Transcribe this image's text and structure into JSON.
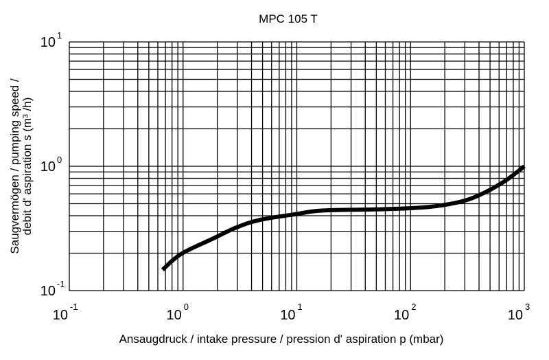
{
  "chart_data": {
    "type": "line",
    "title": "MPC 105 T",
    "xlabel": "Ansaugdruck / intake pressure / pression d' aspiration p (mbar)",
    "ylabel_line1": "Saugvermögen / pumping speed /",
    "ylabel_line2": "debit d' aspiration s (m³ /h)",
    "xscale": "log",
    "yscale": "log",
    "xlim": [
      0.1,
      1000
    ],
    "ylim": [
      0.1,
      10
    ],
    "grid": true,
    "x_ticks": [
      {
        "value": 0.1,
        "base": "10",
        "exp": "-1"
      },
      {
        "value": 1,
        "base": "10",
        "exp": "0"
      },
      {
        "value": 10,
        "base": "10",
        "exp": "1"
      },
      {
        "value": 100,
        "base": "10",
        "exp": "2"
      },
      {
        "value": 1000,
        "base": "10",
        "exp": "3"
      }
    ],
    "y_ticks": [
      {
        "value": 0.1,
        "base": "10",
        "exp": "-1"
      },
      {
        "value": 1,
        "base": "10",
        "exp": "0"
      },
      {
        "value": 10,
        "base": "10",
        "exp": "1"
      }
    ],
    "series": [
      {
        "name": "MPC 105 T",
        "color": "#000000",
        "x": [
          0.66,
          0.96,
          1.8,
          2.9,
          4.7,
          9.5,
          16.5,
          50,
          100,
          174,
          302,
          458,
          690,
          1000
        ],
        "y": [
          0.147,
          0.197,
          0.26,
          0.32,
          0.37,
          0.41,
          0.44,
          0.45,
          0.46,
          0.48,
          0.53,
          0.62,
          0.77,
          1.0
        ]
      }
    ]
  }
}
